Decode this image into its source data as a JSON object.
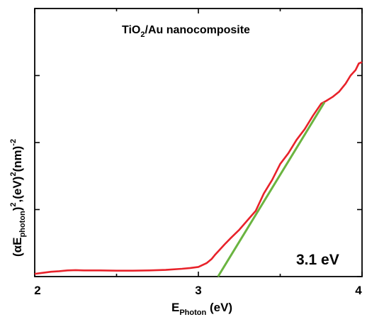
{
  "chart_data": {
    "type": "line",
    "title": {
      "main": "TiO",
      "sub": "2",
      "rest": "/Au nanocomposite"
    },
    "xlabel": {
      "main": "E",
      "sub": "Photon",
      "rest": " (eV)"
    },
    "ylabel": {
      "p1": "(αE",
      "s1": "photon",
      "p2": ")",
      "u1": "2",
      "p3": ",(eV)",
      "u2": "2",
      "p4": "(nm)",
      "u3": "-2"
    },
    "xlim": [
      2,
      4
    ],
    "ylim": [
      0,
      1
    ],
    "x_ticks": [
      2,
      3,
      4
    ],
    "x_tick_labels": [
      "2",
      "3",
      "4"
    ],
    "y_ticks": [
      0,
      0.25,
      0.5,
      0.75,
      1
    ],
    "y_ticks_labeled": false,
    "annotation": "3.1 eV",
    "series": [
      {
        "color": "#e8222a",
        "x": [
          2.0,
          2.05,
          2.1,
          2.15,
          2.2,
          2.25,
          2.3,
          2.4,
          2.5,
          2.6,
          2.7,
          2.8,
          2.9,
          2.95,
          3.0,
          3.05,
          3.08,
          3.1,
          3.13,
          3.16,
          3.2,
          3.25,
          3.3,
          3.35,
          3.4,
          3.45,
          3.5,
          3.55,
          3.6,
          3.65,
          3.7,
          3.75,
          3.78,
          3.82,
          3.86,
          3.9,
          3.93,
          3.96,
          3.98,
          4.0
        ],
        "y": [
          0.01,
          0.014,
          0.018,
          0.02,
          0.023,
          0.024,
          0.023,
          0.023,
          0.022,
          0.022,
          0.023,
          0.025,
          0.029,
          0.032,
          0.036,
          0.05,
          0.065,
          0.08,
          0.1,
          0.12,
          0.145,
          0.175,
          0.21,
          0.245,
          0.31,
          0.36,
          0.42,
          0.46,
          0.51,
          0.55,
          0.6,
          0.645,
          0.655,
          0.67,
          0.69,
          0.72,
          0.75,
          0.77,
          0.795,
          0.8
        ]
      },
      {
        "color": "#6ab440",
        "x": [
          3.12,
          3.77
        ],
        "y": [
          0.0,
          0.65
        ]
      }
    ]
  }
}
